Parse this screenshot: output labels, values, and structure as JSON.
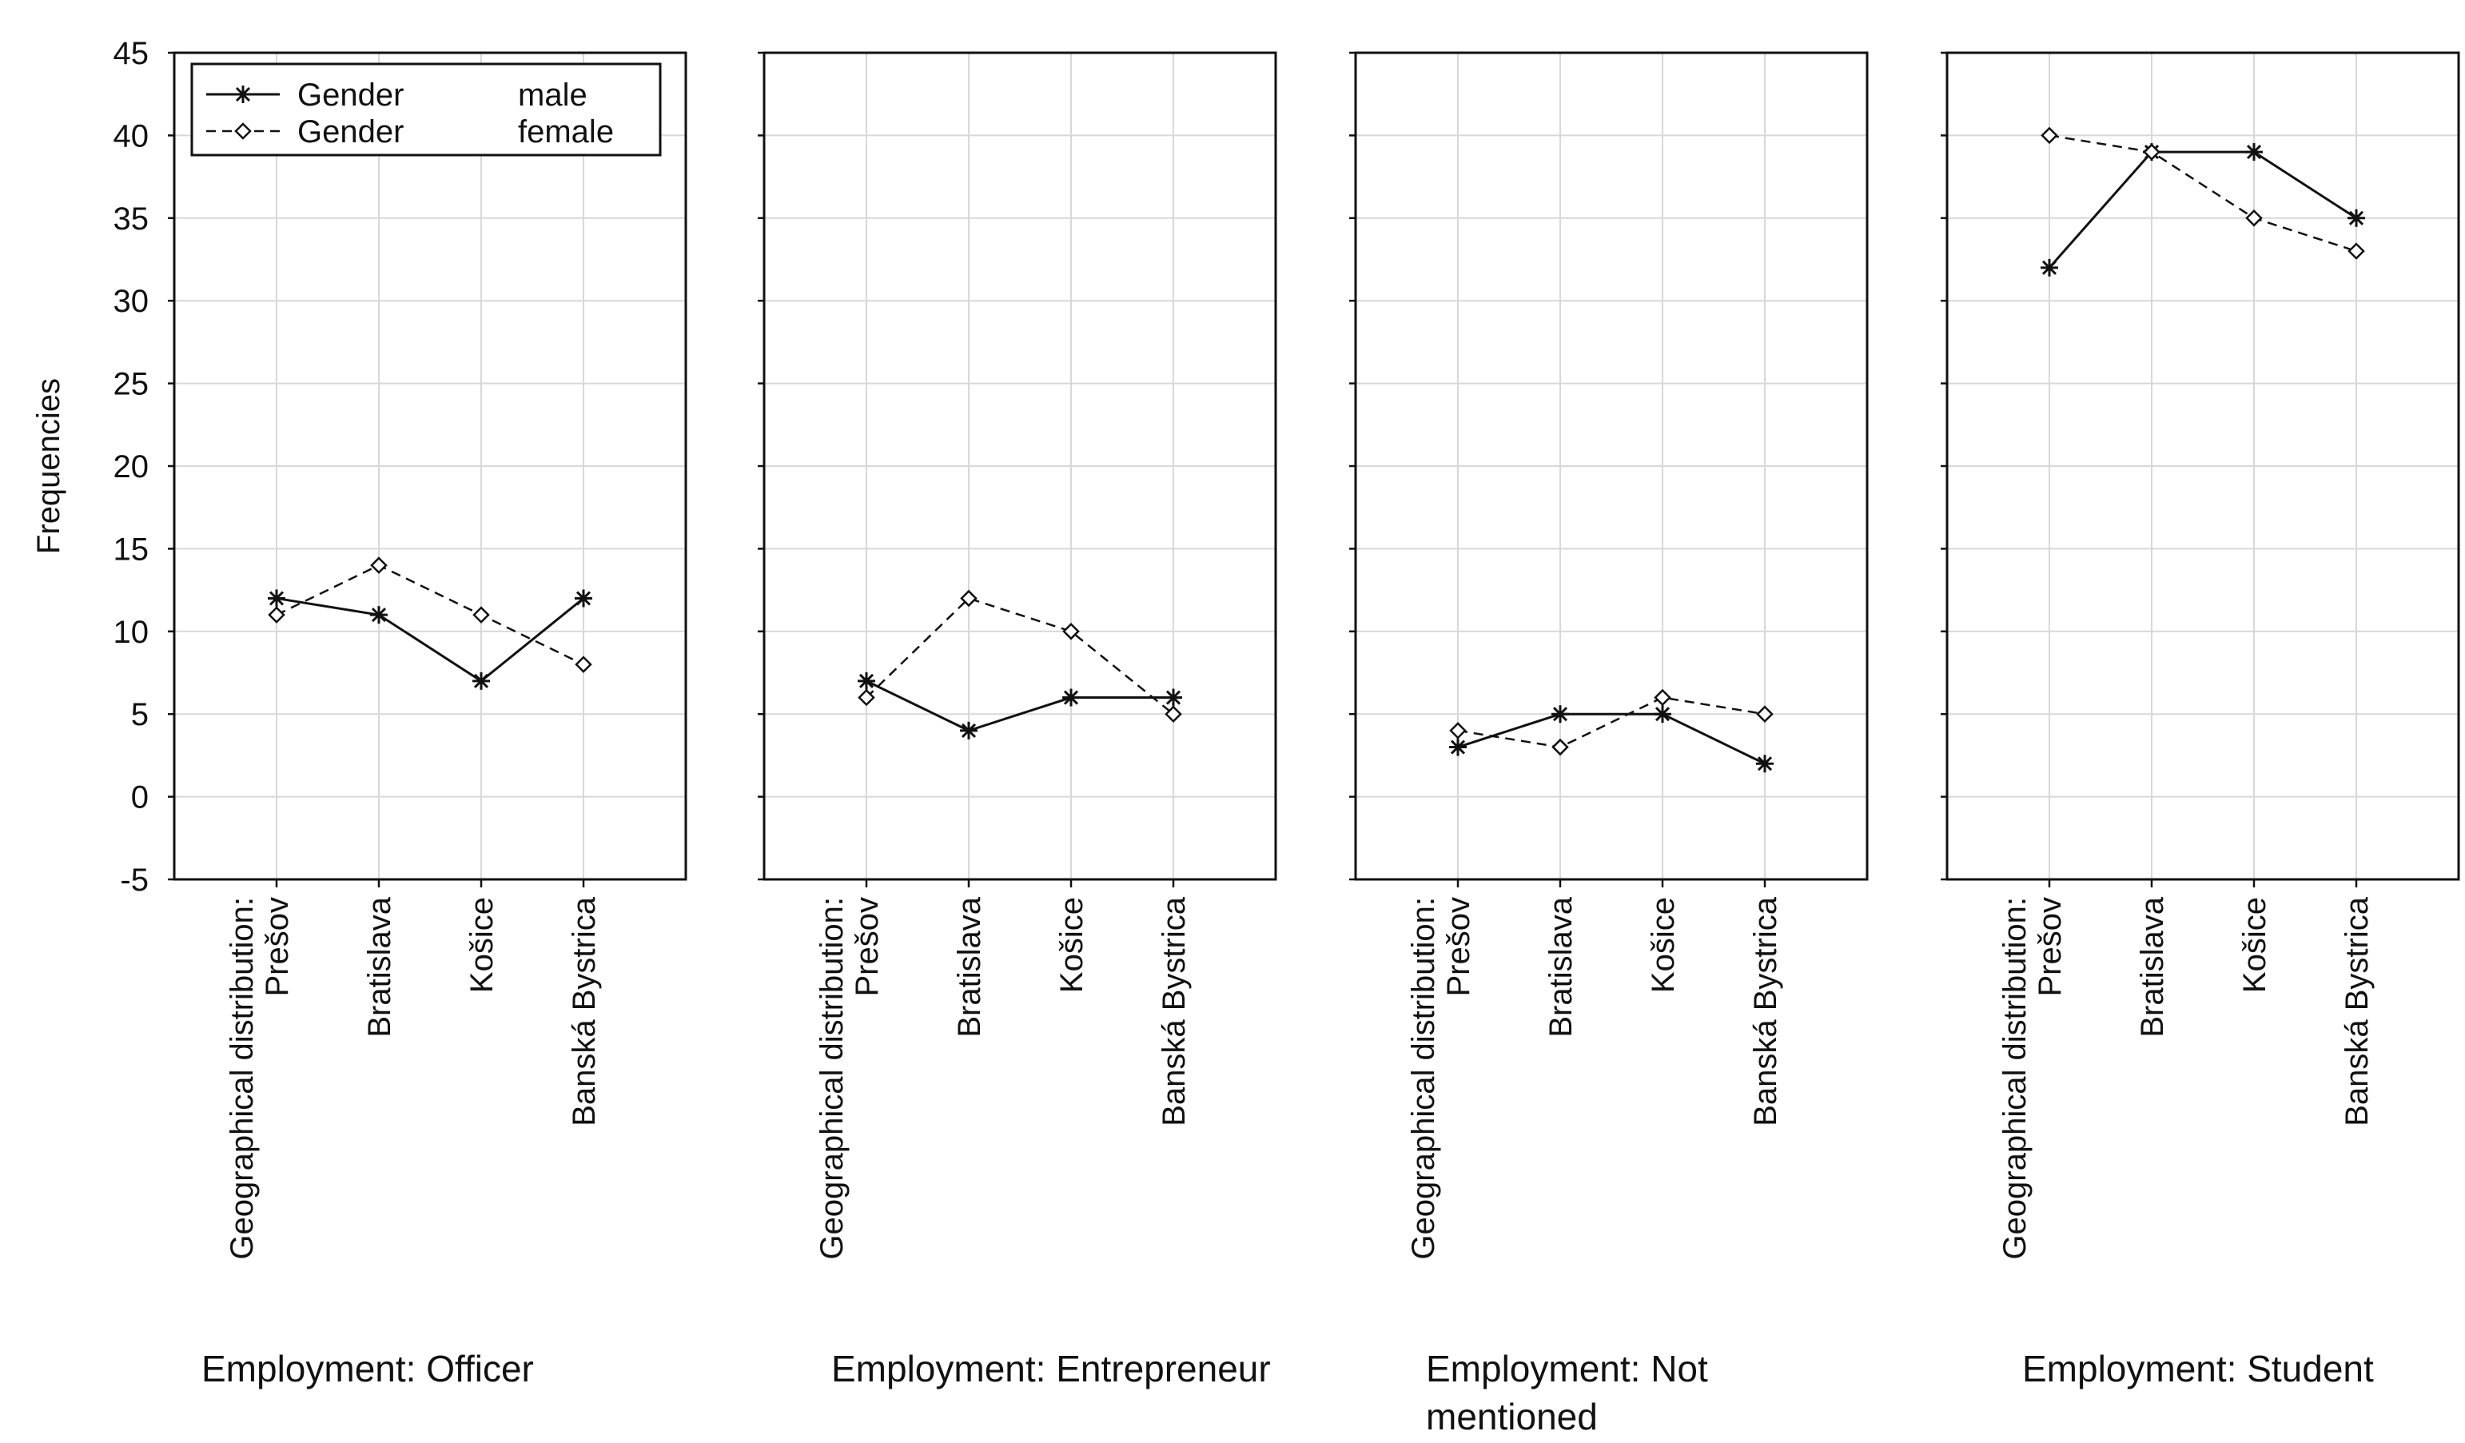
{
  "chart_data": {
    "type": "line",
    "ylabel": "Frequencies",
    "ylim": [
      -5,
      45
    ],
    "yticks": [
      "45",
      "40",
      "35",
      "30",
      "25",
      "20",
      "15",
      "10",
      "5",
      "0",
      "-5"
    ],
    "grid": true,
    "x_axis_prefix": "Geographical distribution:",
    "categories": [
      "Prešov",
      "Bratislava",
      "Košice",
      "Banská Bystrica"
    ],
    "legend": {
      "placement": "top-left",
      "entries": [
        {
          "name": "Gender",
          "value": "male",
          "style": "solid",
          "marker": "asterisk"
        },
        {
          "name": "Gender",
          "value": "female",
          "style": "dashed",
          "marker": "diamond"
        }
      ]
    },
    "panels": [
      {
        "caption_lines": [
          "Employment: Officer"
        ],
        "series": [
          {
            "name": "male",
            "values": [
              12,
              11,
              7,
              12
            ]
          },
          {
            "name": "female",
            "values": [
              11,
              14,
              11,
              8
            ]
          }
        ]
      },
      {
        "caption_lines": [
          "Employment: Entrepreneur"
        ],
        "series": [
          {
            "name": "male",
            "values": [
              7,
              4,
              6,
              6
            ]
          },
          {
            "name": "female",
            "values": [
              6,
              12,
              10,
              5
            ]
          }
        ]
      },
      {
        "caption_lines": [
          "Employment: Not",
          "mentioned"
        ],
        "series": [
          {
            "name": "male",
            "values": [
              3,
              5,
              5,
              2
            ]
          },
          {
            "name": "female",
            "values": [
              4,
              3,
              6,
              5
            ]
          }
        ]
      },
      {
        "caption_lines": [
          "Employment: Student"
        ],
        "series": [
          {
            "name": "male",
            "values": [
              32,
              39,
              39,
              35
            ]
          },
          {
            "name": "female",
            "values": [
              40,
              39,
              35,
              33
            ]
          }
        ]
      }
    ]
  }
}
